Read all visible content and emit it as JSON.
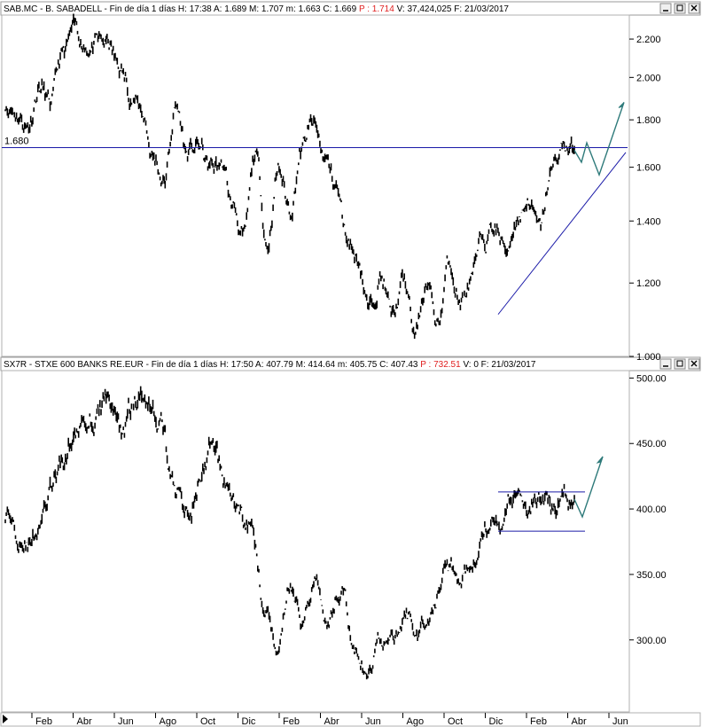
{
  "panels": [
    {
      "ticker": "SAB.MC - B. SABADELL",
      "header_pre": "SAB.MC - B. SABADELL - Fin de día 1 días  H: 17:38  A: 1.689  M: 1.707  m: 1.663  C: 1.669  ",
      "header_p": "P : 1.714",
      "header_post": "  V: 37,424,025  F: 21/03/2017"
    },
    {
      "ticker": "SX7R - STXE 600 BANKS RE.EUR",
      "header_pre": "SX7R - STXE 600 BANKS RE.EUR - Fin de día 1 días  H: 17:50  A: 407.79  M: 414.64  m: 405.75  C: 407.43  ",
      "header_p": "P : 732.51",
      "header_post": "  V: 0  F: 21/03/2017"
    }
  ],
  "x_axis_labels": [
    "Feb",
    "Abr",
    "Jun",
    "Ago",
    "Oct",
    "Dic",
    "Feb",
    "Abr",
    "Jun",
    "Ago",
    "Oct",
    "Dic",
    "Feb",
    "Abr",
    "Jun"
  ],
  "colors": {
    "price": "#000000",
    "level": "#1a1aa8",
    "projection": "#2e7a7a",
    "header_p": "#e02020",
    "level_label": "#1a1aa8"
  },
  "chart_data": [
    {
      "type": "line",
      "series": [
        {
          "values_anchor": [
            1.88,
            1.84,
            1.78,
            1.97,
            1.86,
            2.1,
            2.22,
            2.18,
            2.17,
            2.16,
            2.04,
            1.93,
            1.84,
            1.64,
            1.55,
            1.86,
            1.65,
            1.68,
            1.59,
            1.61,
            1.44,
            1.34,
            1.64,
            1.32,
            1.6,
            1.44,
            1.67,
            1.77,
            1.64,
            1.53,
            1.35,
            1.28,
            1.12,
            1.23,
            1.1,
            1.2,
            1.05,
            1.2,
            1.08,
            1.26,
            1.15,
            1.2,
            1.33,
            1.38,
            1.3,
            1.42,
            1.48,
            1.36,
            1.58,
            1.69,
            1.669
          ]
        }
      ],
      "y_ticks": [
        1.0,
        1.2,
        1.4,
        1.6,
        1.8,
        2.0,
        2.2
      ],
      "y_tick_labels": [
        "1.000",
        "1.200",
        "1.400",
        "1.600",
        "1.800",
        "2.000",
        "2.200"
      ],
      "y_scale": "log",
      "horizontal_level": {
        "value": 1.68,
        "label": "1.680"
      },
      "support_line": {
        "from": [
          1.11
        ],
        "to": [
          1.66
        ]
      },
      "projection": [
        1.669,
        1.62,
        1.7,
        1.57,
        1.88
      ]
    },
    {
      "type": "line",
      "series": [
        {
          "values_anchor": [
            398,
            385,
            375,
            400,
            420,
            445,
            478,
            470,
            485,
            460,
            480,
            490,
            470,
            420,
            395,
            418,
            440,
            420,
            398,
            385,
            330,
            298,
            345,
            315,
            350,
            320,
            345,
            292,
            272,
            300,
            298,
            318,
            308,
            320,
            355,
            345,
            360,
            395,
            390,
            405,
            398,
            408,
            395,
            412,
            407.43
          ]
        }
      ],
      "y_ticks": [
        300,
        350,
        400,
        450,
        500
      ],
      "y_tick_labels": [
        "300.00",
        "350.00",
        "400.00",
        "450.00",
        "500.00"
      ],
      "range_box": {
        "top": 413,
        "bottom": 383
      },
      "projection": [
        407.43,
        394,
        440
      ]
    }
  ]
}
